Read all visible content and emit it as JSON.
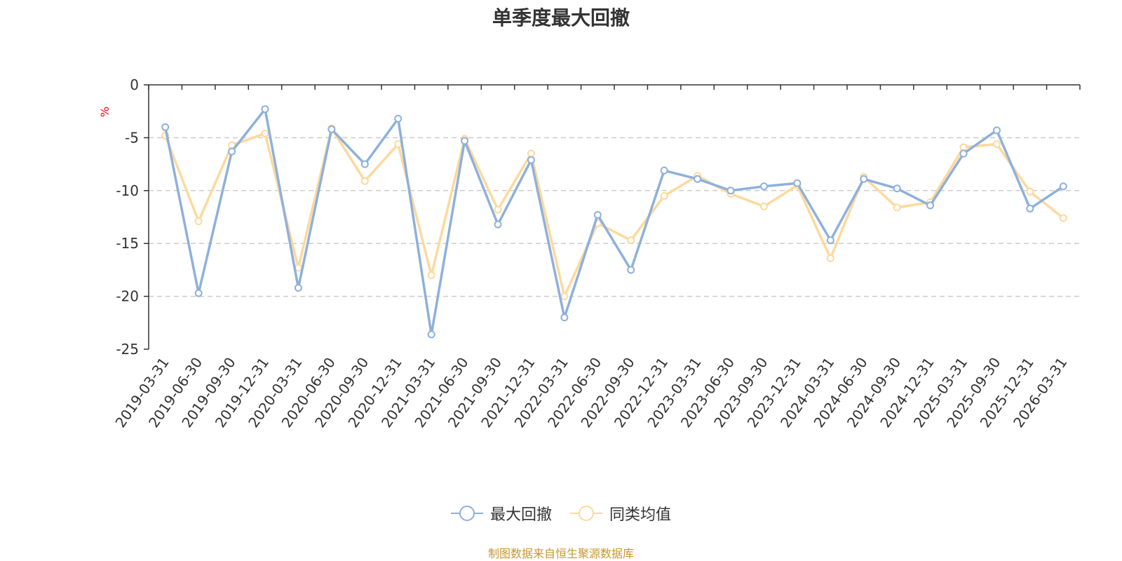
{
  "chart_data": {
    "type": "line",
    "title": "单季度最大回撤",
    "ylabel": "%",
    "ylim": [
      -25,
      0
    ],
    "yticks": [
      0,
      -5,
      -10,
      -15,
      -20,
      -25
    ],
    "grid": true,
    "legend_position": "bottom",
    "categories": [
      "2019-03-31",
      "2019-06-30",
      "2019-09-30",
      "2019-12-31",
      "2020-03-31",
      "2020-06-30",
      "2020-09-30",
      "2020-12-31",
      "2021-03-31",
      "2021-06-30",
      "2021-09-30",
      "2021-12-31",
      "2022-03-31",
      "2022-06-30",
      "2022-09-30",
      "2022-12-31",
      "2023-03-31",
      "2023-06-30",
      "2023-09-30",
      "2023-12-31",
      "2024-03-31",
      "2024-06-30",
      "2024-09-30",
      "2024-12-31",
      "2025-03-31",
      "2025-09-30",
      "2025-12-31",
      "2026-03-31"
    ],
    "series": [
      {
        "name": "最大回撤",
        "color": "#8eb0dc",
        "values": [
          -4.0,
          -19.7,
          -6.3,
          -2.3,
          -19.2,
          -4.2,
          -7.5,
          -3.2,
          -23.6,
          -5.3,
          -13.2,
          -7.1,
          -22.0,
          -12.3,
          -17.5,
          -8.1,
          -8.9,
          -10.0,
          -9.6,
          -9.3,
          -14.7,
          -8.9,
          -9.8,
          -11.4,
          -6.5,
          -4.3,
          -11.7,
          -9.6
        ]
      },
      {
        "name": "同类均值",
        "color": "#fdd99c",
        "values": [
          -4.8,
          -12.9,
          -5.7,
          -4.6,
          -17.3,
          -4.1,
          -9.1,
          -5.6,
          -18.0,
          -5.1,
          -11.8,
          -6.5,
          -20.0,
          -13.1,
          -14.7,
          -10.5,
          -8.6,
          -10.3,
          -11.5,
          -9.5,
          -16.4,
          -8.7,
          -11.6,
          -11.1,
          -5.9,
          -5.6,
          -10.1,
          -12.6
        ]
      }
    ]
  },
  "footer": {
    "source": "制图数据来自恒生聚源数据库"
  }
}
